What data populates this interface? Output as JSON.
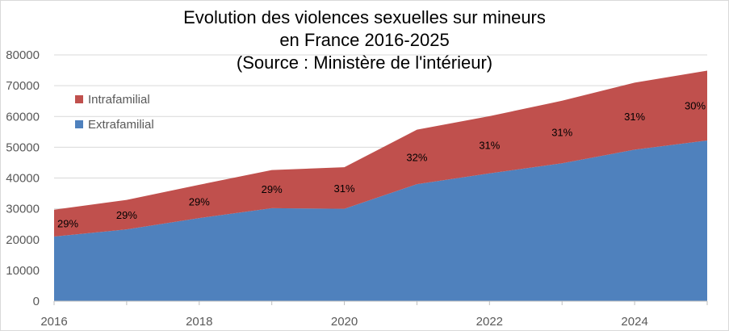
{
  "chart_data": {
    "type": "area",
    "stacked": true,
    "title_lines": [
      "Evolution des violences sexuelles sur mineurs",
      "en France 2016-2025",
      "(Source : Ministère de l'intérieur)"
    ],
    "x": [
      2016,
      2017,
      2018,
      2019,
      2020,
      2021,
      2022,
      2023,
      2024,
      2025
    ],
    "x_tick_labels": [
      "2016",
      "2018",
      "2020",
      "2022",
      "2024"
    ],
    "y_tick_labels": [
      "0",
      "10000",
      "20000",
      "30000",
      "40000",
      "50000",
      "60000",
      "70000",
      "80000"
    ],
    "ylim": [
      0,
      80000
    ],
    "grid": true,
    "legend_position": "top-left",
    "series": [
      {
        "name": "Extrafamilial",
        "color": "#4f81bd",
        "values": [
          21000,
          23300,
          27000,
          30200,
          30000,
          38000,
          41500,
          44800,
          49200,
          52200
        ]
      },
      {
        "name": "Intrafamilial",
        "color": "#c0504d",
        "values": [
          8700,
          9600,
          10800,
          12400,
          13500,
          17700,
          18600,
          20300,
          21800,
          22700
        ]
      }
    ],
    "data_labels": [
      "29%",
      "29%",
      "29%",
      "29%",
      "31%",
      "32%",
      "31%",
      "31%",
      "31%",
      "30%"
    ]
  }
}
